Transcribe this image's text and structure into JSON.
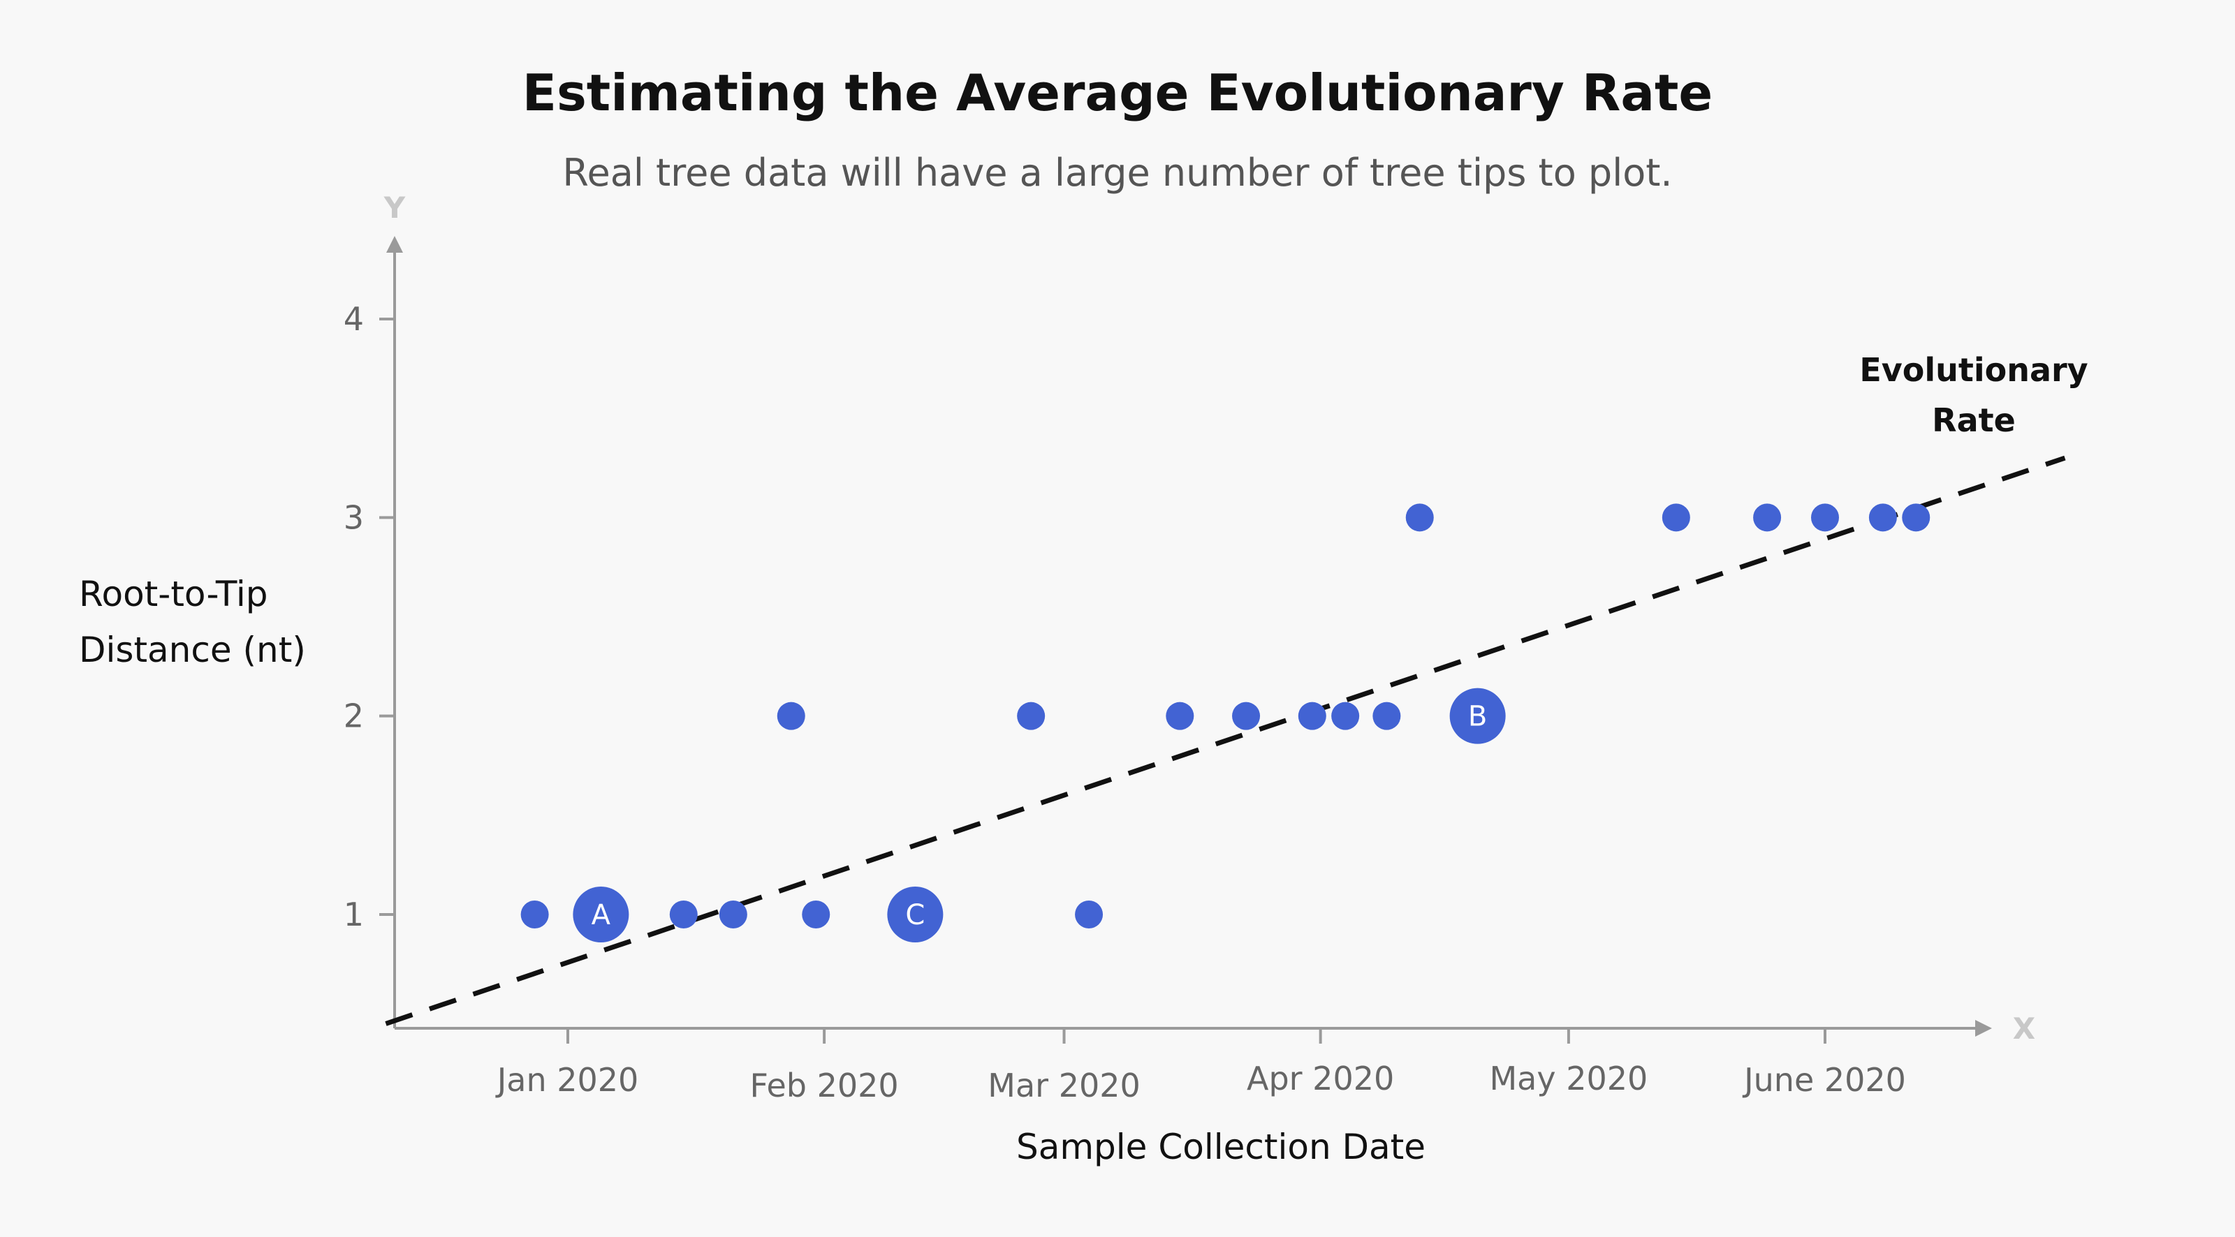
{
  "chart_data": {
    "type": "scatter",
    "title": "Estimating the Average Evolutionary Rate",
    "subtitle": "Real tree data will have a large number of tree tips to plot.",
    "xlabel": "Sample Collection Date",
    "ylabel": [
      "Root-to-Tip",
      "Distance (nt)"
    ],
    "x_axis_letter": "X",
    "y_axis_letter": "Y",
    "x_ticks": [
      "Jan 2020",
      "Feb 2020",
      "Mar 2020",
      "Apr 2020",
      "May 2020",
      "June 2020"
    ],
    "y_ticks": [
      1,
      2,
      3,
      4
    ],
    "ylim": [
      0.42,
      4.4
    ],
    "grid": false,
    "point_color": "#4263d3",
    "line_color": "#111111",
    "trendline": {
      "label": [
        "Evolutionary",
        "Rate"
      ],
      "start": {
        "x": "2019-12-10",
        "y": 0.45
      },
      "end": {
        "x": "2020-06-30",
        "y": 3.3
      }
    },
    "points": [
      {
        "x": "2019-12-28",
        "y": 1,
        "label": ""
      },
      {
        "x": "2020-01-05",
        "y": 1,
        "label": "A"
      },
      {
        "x": "2020-01-15",
        "y": 1,
        "label": ""
      },
      {
        "x": "2020-01-21",
        "y": 1,
        "label": ""
      },
      {
        "x": "2020-01-28",
        "y": 2,
        "label": ""
      },
      {
        "x": "2020-01-31",
        "y": 1,
        "label": ""
      },
      {
        "x": "2020-02-12",
        "y": 1,
        "label": "C"
      },
      {
        "x": "2020-02-26",
        "y": 2,
        "label": ""
      },
      {
        "x": "2020-03-04",
        "y": 1,
        "label": ""
      },
      {
        "x": "2020-03-15",
        "y": 2,
        "label": ""
      },
      {
        "x": "2020-03-23",
        "y": 2,
        "label": ""
      },
      {
        "x": "2020-03-31",
        "y": 2,
        "label": ""
      },
      {
        "x": "2020-04-04",
        "y": 2,
        "label": ""
      },
      {
        "x": "2020-04-09",
        "y": 2,
        "label": ""
      },
      {
        "x": "2020-04-13",
        "y": 3,
        "label": ""
      },
      {
        "x": "2020-04-20",
        "y": 2,
        "label": "B"
      },
      {
        "x": "2020-05-14",
        "y": 3,
        "label": ""
      },
      {
        "x": "2020-05-25",
        "y": 3,
        "label": ""
      },
      {
        "x": "2020-06-01",
        "y": 3,
        "label": ""
      },
      {
        "x": "2020-06-08",
        "y": 3,
        "label": ""
      },
      {
        "x": "2020-06-12",
        "y": 3,
        "label": ""
      }
    ]
  }
}
